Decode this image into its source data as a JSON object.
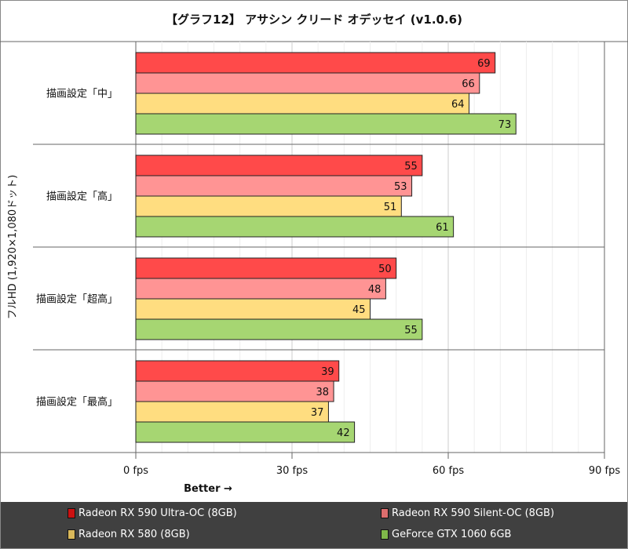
{
  "chart_data": {
    "type": "bar",
    "orientation": "horizontal",
    "title": "【グラフ12】 アサシン クリード オデッセイ (v1.0.6)",
    "ylabel": "フルHD (1,920×1,080ドット)",
    "xlabel": "Better →",
    "categories": [
      "描画設定「中」",
      "描画設定「高」",
      "描画設定「超高」",
      "描画設定「最高」"
    ],
    "xlim": [
      0,
      90
    ],
    "xticks": [
      0,
      30,
      60,
      90
    ],
    "xtick_labels": [
      "0 fps",
      "30 fps",
      "60 fps",
      "90 fps"
    ],
    "grid": true,
    "legend_position": "bottom",
    "series": [
      {
        "name": "Radeon RX 590 Ultra-OC (8GB)",
        "color": "#ff4a4a",
        "legend_color": "#cc1111",
        "values": [
          69,
          55,
          50,
          39
        ]
      },
      {
        "name": "Radeon RX 590 Silent-OC (8GB)",
        "color": "#ff9494",
        "legend_color": "#dd6e6e",
        "values": [
          66,
          53,
          48,
          38
        ]
      },
      {
        "name": "Radeon RX 580 (8GB)",
        "color": "#ffdd80",
        "legend_color": "#d9b85a",
        "values": [
          64,
          51,
          45,
          37
        ]
      },
      {
        "name": "GeForce GTX 1060 6GB",
        "color": "#a6d672",
        "legend_color": "#7fb84a",
        "values": [
          73,
          61,
          55,
          42
        ]
      }
    ]
  }
}
